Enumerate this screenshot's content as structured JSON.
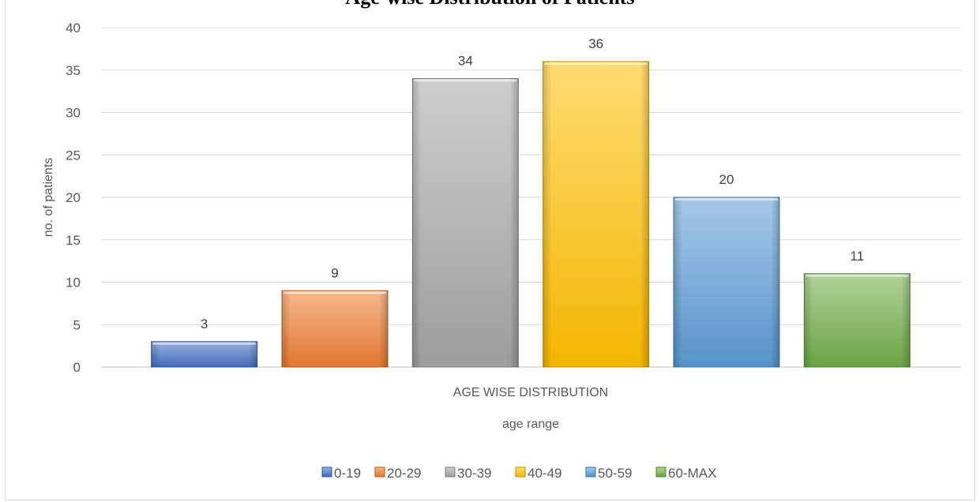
{
  "chart_data": {
    "type": "bar",
    "title": "Age-wise Distribution of Patients",
    "categories": [
      "AGE WISE DISTRIBUTION"
    ],
    "series": [
      {
        "name": "0-19",
        "values": [
          3
        ],
        "color": "#4472c4"
      },
      {
        "name": "20-29",
        "values": [
          9
        ],
        "color": "#ed7d31"
      },
      {
        "name": "30-39",
        "values": [
          34
        ],
        "color": "#a5a5a5"
      },
      {
        "name": "40-49",
        "values": [
          36
        ],
        "color": "#ffc000"
      },
      {
        "name": "50-59",
        "values": [
          20
        ],
        "color": "#5b9bd5"
      },
      {
        "name": "60-MAX",
        "values": [
          11
        ],
        "color": "#70ad47"
      }
    ],
    "xlabel": "age range",
    "ylabel": "no. of patients",
    "ylim": [
      0,
      40
    ],
    "yticks": [
      0,
      5,
      10,
      15,
      20,
      25,
      30,
      35,
      40
    ],
    "grid": true,
    "legend_position": "bottom",
    "data_labels": true
  }
}
